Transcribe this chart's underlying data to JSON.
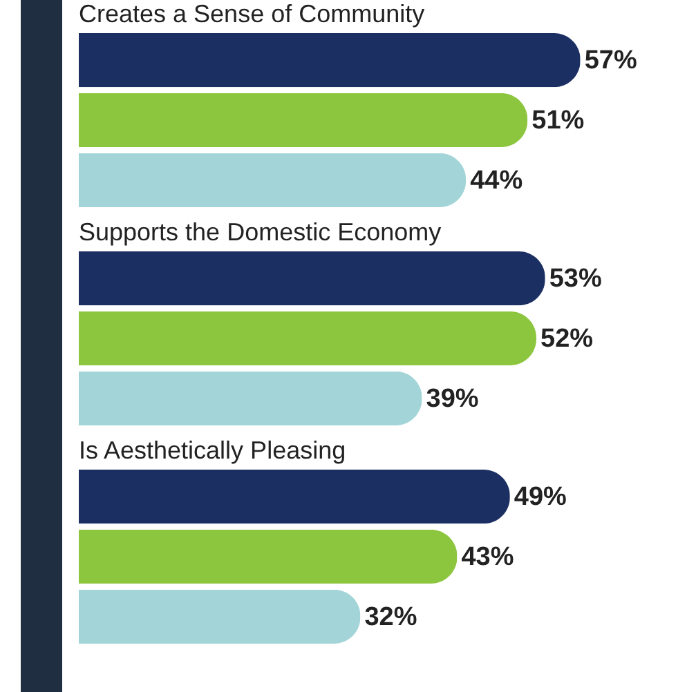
{
  "chart_data": {
    "type": "bar",
    "orientation": "horizontal",
    "categories": [
      "Creates a Sense of Community",
      "Supports the Domestic Economy",
      "Is Aesthetically Pleasing"
    ],
    "series": [
      {
        "color": "#1b2f63",
        "values": [
          57,
          53,
          49
        ],
        "value_labels": [
          "57%",
          "53%",
          "49%"
        ]
      },
      {
        "color": "#8cc63e",
        "values": [
          51,
          52,
          43
        ],
        "value_labels": [
          "51%",
          "52%",
          "43%"
        ]
      },
      {
        "color": "#a3d5d8",
        "values": [
          44,
          39,
          32
        ],
        "value_labels": [
          "44%",
          "39%",
          "32%"
        ]
      }
    ]
  }
}
